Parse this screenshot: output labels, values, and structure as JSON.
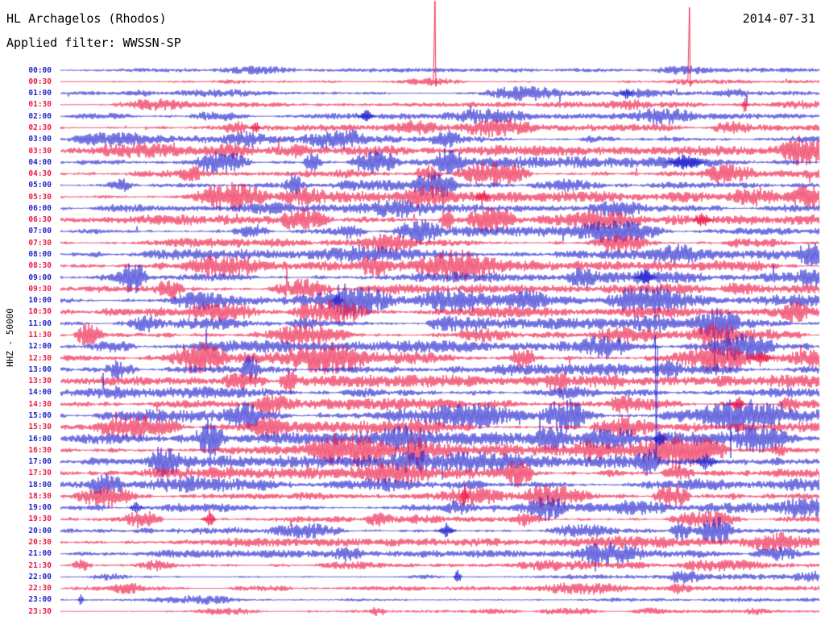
{
  "header": {
    "station_title": "HL Archagelos (Rhodos)",
    "date": "2014-07-31",
    "filter_label": "Applied filter: WWSSN-SP"
  },
  "axis": {
    "y_label": "HHZ - 50000"
  },
  "colors": {
    "background": "#ffffff",
    "text": "#000000",
    "trace_blue": "#2222cf",
    "trace_red": "#ed1845"
  },
  "chart_data": {
    "type": "line",
    "subtype": "helicorder-seismogram",
    "station": "HL Archagelos (Rhodos)",
    "date": "2014-07-31",
    "filter": "WWSSN-SP",
    "channel_scale": "HHZ - 50000",
    "row_duration_minutes": 30,
    "legend_position": "none",
    "grid": false,
    "rows": [
      {
        "label": "00:00",
        "color": "blue",
        "activity": 0.55
      },
      {
        "label": "00:30",
        "color": "red",
        "activity": 0.55
      },
      {
        "label": "01:00",
        "color": "blue",
        "activity": 0.7
      },
      {
        "label": "01:30",
        "color": "red",
        "activity": 0.75
      },
      {
        "label": "02:00",
        "color": "blue",
        "activity": 0.8
      },
      {
        "label": "02:30",
        "color": "red",
        "activity": 0.95
      },
      {
        "label": "03:00",
        "color": "blue",
        "activity": 1.2
      },
      {
        "label": "03:30",
        "color": "red",
        "activity": 1.35
      },
      {
        "label": "04:00",
        "color": "blue",
        "activity": 1.5
      },
      {
        "label": "04:30",
        "color": "red",
        "activity": 1.5
      },
      {
        "label": "05:00",
        "color": "blue",
        "activity": 1.4
      },
      {
        "label": "05:30",
        "color": "red",
        "activity": 1.35
      },
      {
        "label": "06:00",
        "color": "blue",
        "activity": 1.25
      },
      {
        "label": "06:30",
        "color": "red",
        "activity": 1.3
      },
      {
        "label": "07:00",
        "color": "blue",
        "activity": 1.3
      },
      {
        "label": "07:30",
        "color": "red",
        "activity": 1.3
      },
      {
        "label": "08:00",
        "color": "blue",
        "activity": 1.4
      },
      {
        "label": "08:30",
        "color": "red",
        "activity": 1.4
      },
      {
        "label": "09:00",
        "color": "blue",
        "activity": 1.5
      },
      {
        "label": "09:30",
        "color": "red",
        "activity": 1.45
      },
      {
        "label": "10:00",
        "color": "blue",
        "activity": 1.5
      },
      {
        "label": "10:30",
        "color": "red",
        "activity": 1.45
      },
      {
        "label": "11:00",
        "color": "blue",
        "activity": 1.5
      },
      {
        "label": "11:30",
        "color": "red",
        "activity": 1.45
      },
      {
        "label": "12:00",
        "color": "blue",
        "activity": 1.55
      },
      {
        "label": "12:30",
        "color": "red",
        "activity": 1.6
      },
      {
        "label": "13:00",
        "color": "blue",
        "activity": 1.6
      },
      {
        "label": "13:30",
        "color": "red",
        "activity": 1.55
      },
      {
        "label": "14:00",
        "color": "blue",
        "activity": 1.7
      },
      {
        "label": "14:30",
        "color": "red",
        "activity": 1.65
      },
      {
        "label": "15:00",
        "color": "blue",
        "activity": 1.7
      },
      {
        "label": "15:30",
        "color": "red",
        "activity": 1.75
      },
      {
        "label": "16:00",
        "color": "blue",
        "activity": 1.7
      },
      {
        "label": "16:30",
        "color": "red",
        "activity": 1.7
      },
      {
        "label": "17:00",
        "color": "blue",
        "activity": 1.65
      },
      {
        "label": "17:30",
        "color": "red",
        "activity": 1.6
      },
      {
        "label": "18:00",
        "color": "blue",
        "activity": 1.55
      },
      {
        "label": "18:30",
        "color": "red",
        "activity": 1.5
      },
      {
        "label": "19:00",
        "color": "blue",
        "activity": 1.3
      },
      {
        "label": "19:30",
        "color": "red",
        "activity": 1.15
      },
      {
        "label": "20:00",
        "color": "blue",
        "activity": 1.2
      },
      {
        "label": "20:30",
        "color": "red",
        "activity": 1.1
      },
      {
        "label": "21:00",
        "color": "blue",
        "activity": 1.0
      },
      {
        "label": "21:30",
        "color": "red",
        "activity": 0.6
      },
      {
        "label": "22:00",
        "color": "blue",
        "activity": 0.7
      },
      {
        "label": "22:30",
        "color": "red",
        "activity": 0.6
      },
      {
        "label": "23:00",
        "color": "blue",
        "activity": 0.55
      },
      {
        "label": "23:30",
        "color": "red",
        "activity": 0.45
      }
    ],
    "events": [
      {
        "row_label": "00:30",
        "x_frac": 0.493,
        "up": 100,
        "down": 6,
        "width": 2
      },
      {
        "row_label": "00:30",
        "x_frac": 0.828,
        "up": 92,
        "down": 6,
        "width": 2
      },
      {
        "row_label": "01:00",
        "x_frac": 0.745,
        "up": 8,
        "down": 8,
        "width": 10
      },
      {
        "row_label": "01:30",
        "x_frac": 0.901,
        "up": 15,
        "down": 15,
        "width": 4
      },
      {
        "row_label": "02:00",
        "x_frac": 0.403,
        "up": 9,
        "down": 9,
        "width": 12
      },
      {
        "row_label": "02:30",
        "x_frac": 0.257,
        "up": 10,
        "down": 10,
        "width": 8
      },
      {
        "row_label": "04:00",
        "x_frac": 0.823,
        "up": 12,
        "down": 12,
        "width": 26
      },
      {
        "row_label": "05:30",
        "x_frac": 0.556,
        "up": 12,
        "down": 12,
        "width": 10
      },
      {
        "row_label": "06:30",
        "x_frac": 0.846,
        "up": 11,
        "down": 11,
        "width": 14
      },
      {
        "row_label": "09:00",
        "x_frac": 0.77,
        "up": 10,
        "down": 10,
        "width": 16
      },
      {
        "row_label": "10:00",
        "x_frac": 0.365,
        "up": 12,
        "down": 12,
        "width": 8
      },
      {
        "row_label": "12:00",
        "x_frac": 0.783,
        "up": 14,
        "down": 138,
        "width": 2
      },
      {
        "row_label": "12:30",
        "x_frac": 0.922,
        "up": 12,
        "down": 12,
        "width": 16
      },
      {
        "row_label": "14:30",
        "x_frac": 0.892,
        "up": 12,
        "down": 12,
        "width": 12
      },
      {
        "row_label": "16:00",
        "x_frac": 0.789,
        "up": 13,
        "down": 13,
        "width": 10
      },
      {
        "row_label": "17:00",
        "x_frac": 0.85,
        "up": 12,
        "down": 12,
        "width": 18
      },
      {
        "row_label": "18:30",
        "x_frac": 0.532,
        "up": 16,
        "down": 16,
        "width": 6
      },
      {
        "row_label": "19:00",
        "x_frac": 0.1,
        "up": 11,
        "down": 11,
        "width": 10
      },
      {
        "row_label": "19:30",
        "x_frac": 0.196,
        "up": 12,
        "down": 12,
        "width": 10
      },
      {
        "row_label": "20:00",
        "x_frac": 0.508,
        "up": 10,
        "down": 10,
        "width": 12
      },
      {
        "row_label": "22:00",
        "x_frac": 0.523,
        "up": 12,
        "down": 12,
        "width": 6
      },
      {
        "row_label": "23:00",
        "x_frac": 0.027,
        "up": 10,
        "down": 10,
        "width": 4
      }
    ]
  }
}
